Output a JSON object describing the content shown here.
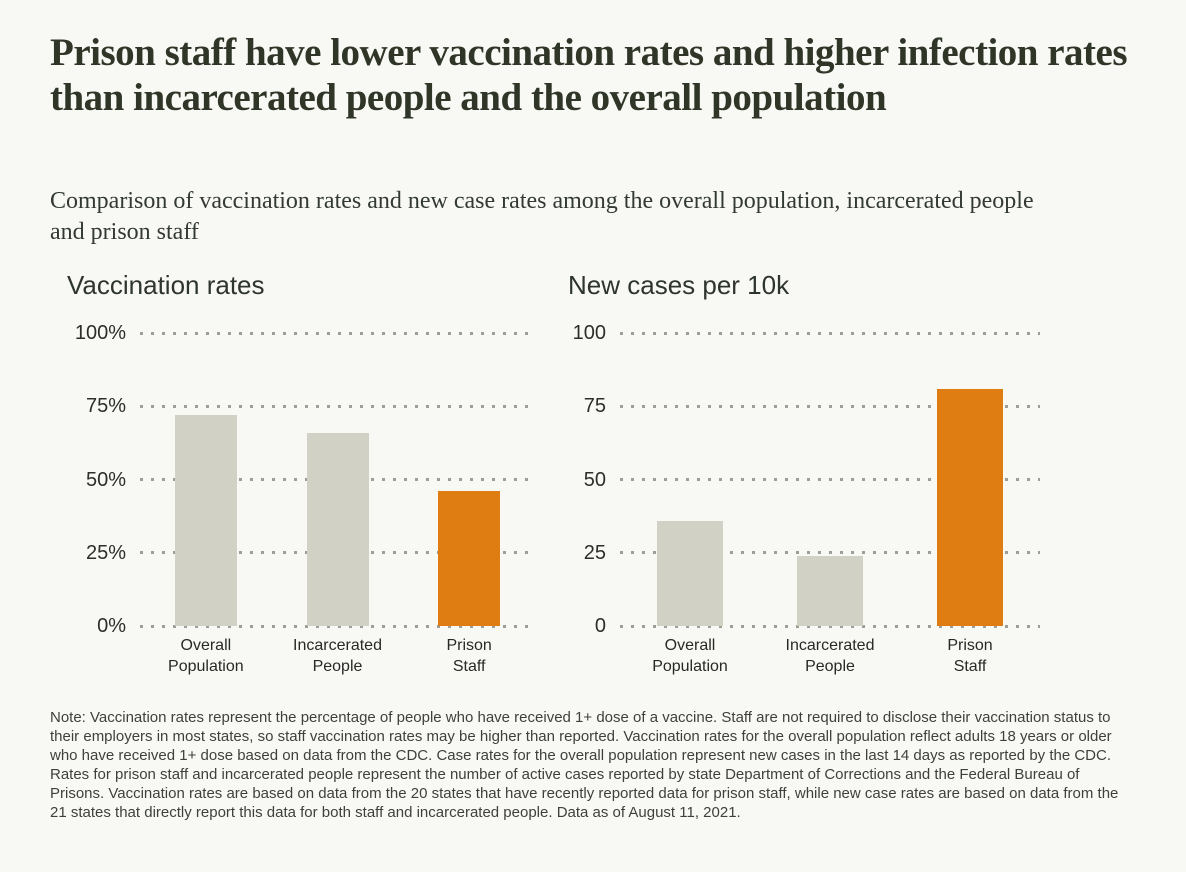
{
  "page": {
    "title": "Prison staff have lower vaccination rates and higher infection rates than incarcerated people and the overall population",
    "subtitle": "Comparison of vaccination rates and new case rates among the overall population, incarcerated people and prison staff",
    "note": "Note: Vaccination rates represent the percentage of people who have received 1+ dose of a vaccine. Staff are not required to disclose their vaccination status to their employers in most states, so staff vaccination rates may be higher than reported. Vaccination rates for the overall population reflect adults 18 years or older who have received 1+ dose based on data from the CDC. Case rates for the overall population represent new cases in the last 14 days as reported by the CDC. Rates for prison staff and incarcerated people represent the number of active cases reported by state Department of Corrections and the Federal Bureau of Prisons. Vaccination rates are based on data from the 20 states that have recently reported data for prison staff, while new case rates are based on data from the 21 states that directly report this data for both staff and incarcerated people. Data as of August 11, 2021."
  },
  "colors": {
    "background": "#f8f9f4",
    "title_text": "#2f3627",
    "bar_default": "#d1d2c5",
    "bar_highlight": "#e07d12",
    "gridline": "#9c9f95"
  },
  "chart_data": [
    {
      "type": "bar",
      "title": "Vaccination rates",
      "categories": [
        [
          "Overall",
          "Population"
        ],
        [
          "Incarcerated",
          "People"
        ],
        [
          "Prison",
          "Staff"
        ]
      ],
      "values": [
        72,
        66,
        46
      ],
      "highlight_index": 2,
      "ylim": [
        0,
        100
      ],
      "yticks": [
        0,
        25,
        50,
        75,
        100
      ],
      "ytick_labels": [
        "0%",
        "25%",
        "50%",
        "75%",
        "100%"
      ],
      "grid": "dotted-horizontal",
      "legend": "none",
      "xlabel": "",
      "ylabel": ""
    },
    {
      "type": "bar",
      "title": "New cases per 10k",
      "categories": [
        [
          "Overall",
          "Population"
        ],
        [
          "Incarcerated",
          "People"
        ],
        [
          "Prison",
          "Staff"
        ]
      ],
      "values": [
        36,
        24,
        81
      ],
      "highlight_index": 2,
      "ylim": [
        0,
        100
      ],
      "yticks": [
        0,
        25,
        50,
        75,
        100
      ],
      "ytick_labels": [
        "0",
        "25",
        "50",
        "75",
        "100"
      ],
      "grid": "dotted-horizontal",
      "legend": "none",
      "xlabel": "",
      "ylabel": ""
    }
  ]
}
